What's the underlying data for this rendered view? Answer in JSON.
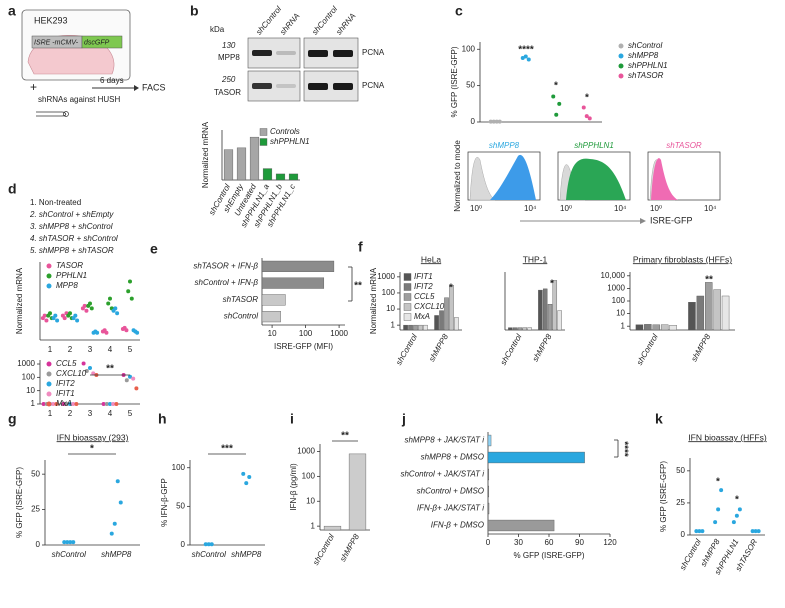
{
  "panel_a": {
    "panel": "a",
    "cell_line": "HEK293",
    "promoter": "ISRE -mCMV-",
    "reporter": "dscGFP",
    "duration": "6 days",
    "readout": "FACS",
    "plus": "+",
    "treatment": "shRNAs against HUSH"
  },
  "panel_b_blot": {
    "panel": "b",
    "unit": "kDa",
    "lanes": [
      "shControl",
      "shRNA"
    ],
    "rows": [
      {
        "size": "130",
        "protein": "MPP8",
        "loading": "PCNA"
      },
      {
        "size": "250",
        "protein": "TASOR",
        "loading": "PCNA"
      }
    ]
  },
  "panel_c_flow": {
    "samples": [
      "shMPP8",
      "shPPHLN1",
      "shTASOR"
    ],
    "ylabel": "Normalized to mode",
    "xlabel": "ISRE-GFP",
    "xticks": [
      "10⁰",
      "10⁴"
    ]
  },
  "panel_d_key": {
    "panel": "d",
    "conditions": [
      "1. Non-treated",
      "2. shControl + shEmpty",
      "3. shMPP8 + shControl",
      "4. shTASOR + shControl",
      "5. shMPP8 + shTASOR"
    ]
  },
  "chart_data": [
    {
      "type": "bar",
      "ylabel": "Normalized mRNA",
      "categories": [
        "shControl",
        "shEmpty",
        "Untreated",
        "shPPHLN1_a",
        "shPPHLN1_b",
        "shPPHLN1_c"
      ],
      "series": [
        {
          "name": "Controls",
          "color": "#a6a6a6",
          "values": [
            0.85,
            0.9,
            1.2,
            null,
            null,
            null
          ]
        },
        {
          "name": "shPPHLN1",
          "color": "#1e9a3a",
          "values": [
            null,
            null,
            null,
            0.32,
            0.17,
            0.17
          ]
        }
      ],
      "ylim": [
        0,
        1.4
      ]
    },
    {
      "type": "dot",
      "panel": "c",
      "ylabel": "% GFP (ISRE-GFP)",
      "categories": [
        null,
        null,
        null,
        null
      ],
      "series": [
        {
          "name": "shControl",
          "color": "#b0b0b0",
          "values": [
            [
              0.5,
              0.5,
              0.5,
              0.5
            ],
            null,
            null,
            null
          ]
        },
        {
          "name": "shMPP8",
          "color": "#2aa7df",
          "values": [
            null,
            [
              88,
              90,
              86
            ],
            null,
            null
          ]
        },
        {
          "name": "shPPHLN1",
          "color": "#1e9a3a",
          "values": [
            null,
            null,
            [
              35,
              10,
              25
            ],
            null
          ]
        },
        {
          "name": "shTASOR",
          "color": "#e8559a",
          "values": [
            null,
            null,
            null,
            [
              20,
              8,
              5
            ]
          ]
        }
      ],
      "ylim": [
        0,
        110
      ],
      "yticks": [
        0,
        50,
        100
      ],
      "annotations": [
        "****",
        "*",
        "*"
      ]
    },
    {
      "type": "dot",
      "ylabel": "Normalized mRNA",
      "categories": [
        "1",
        "2",
        "3",
        "4",
        "5"
      ],
      "series": [
        {
          "name": "TASOR",
          "color": "#e8559a",
          "values": [
            [
              0.9,
              1.0,
              0.8
            ],
            [
              1.0,
              0.9,
              1.1
            ],
            [
              1.3,
              1.4,
              1.2
            ],
            [
              0.35,
              0.4,
              0.3
            ],
            [
              0.45,
              0.5,
              0.4
            ]
          ]
        },
        {
          "name": "PPHLN1",
          "color": "#2ca02c",
          "values": [
            [
              1.0,
              1.1,
              0.9
            ],
            [
              1.0,
              1.1,
              0.9
            ],
            [
              1.4,
              1.5,
              1.3
            ],
            [
              1.5,
              1.7,
              1.3
            ],
            [
              2.0,
              2.4,
              1.7
            ]
          ]
        },
        {
          "name": "MPP8",
          "color": "#2aa7df",
          "values": [
            [
              0.9,
              1.0,
              0.8
            ],
            [
              0.9,
              1.0,
              0.8
            ],
            [
              0.3,
              0.35,
              0.3
            ],
            [
              1.2,
              1.3,
              1.1
            ],
            [
              0.4,
              0.35,
              0.3
            ]
          ]
        }
      ],
      "ylim": [
        0,
        3.2
      ]
    },
    {
      "type": "dot",
      "log": true,
      "categories": [
        "1",
        "2",
        "3",
        "4",
        "5"
      ],
      "series": [
        {
          "name": "CCL5",
          "color": "#d6339a",
          "values": [
            1,
            1,
            1100,
            1,
            150
          ]
        },
        {
          "name": "CXCL10",
          "color": "#9a9a9a",
          "values": [
            1,
            1,
            300,
            1,
            60
          ]
        },
        {
          "name": "IFIT2",
          "color": "#2aa7df",
          "values": [
            1,
            1,
            500,
            1,
            110
          ]
        },
        {
          "name": "IFIT1",
          "color": "#f08cc0",
          "values": [
            1,
            1,
            200,
            1,
            80
          ]
        },
        {
          "name": "MxA",
          "color": "#e8604c",
          "values": [
            1,
            1,
            150,
            1,
            15
          ]
        }
      ],
      "ylim": [
        1,
        2000
      ],
      "yticks": [
        1,
        10,
        100,
        1000
      ],
      "annotations": [
        "**"
      ]
    },
    {
      "type": "hbar",
      "panel": "e",
      "log": true,
      "xlabel": "ISRE-GFP (MFI)",
      "categories": [
        "shTASOR + IFN-β",
        "shControl + IFN-β",
        "shTASOR",
        "shControl"
      ],
      "values": [
        700,
        350,
        25,
        18
      ],
      "colors": [
        "#8c8c8c",
        "#8c8c8c",
        "#c8c8c8",
        "#c8c8c8"
      ],
      "xlim": [
        5,
        1500
      ],
      "xticks": [
        10,
        100,
        1000
      ],
      "annotations": [
        "**"
      ]
    },
    {
      "type": "bar",
      "panel": "f",
      "title": "HeLa",
      "ylabel": "Normalized mRNA",
      "log": true,
      "categories": [
        "shControl",
        "shMPP8"
      ],
      "series": [
        {
          "name": "IFIT1",
          "color": "#555555",
          "values": [
            1,
            4
          ]
        },
        {
          "name": "IFIT2",
          "color": "#7a7a7a",
          "values": [
            1,
            8
          ]
        },
        {
          "name": "CCL5",
          "color": "#9e9e9e",
          "values": [
            1,
            50
          ]
        },
        {
          "name": "CXCL10",
          "color": "#c4c4c4",
          "values": [
            1,
            300
          ]
        },
        {
          "name": "MxA",
          "color": "#e6e6e6",
          "values": [
            1,
            3
          ]
        }
      ],
      "ylim": [
        0.5,
        2000
      ],
      "yticks": [
        1,
        10,
        100,
        1000
      ],
      "annotations": [
        "*"
      ]
    },
    {
      "type": "bar",
      "title": "THP-1",
      "log": true,
      "categories": [
        "shControl",
        "shMPP8"
      ],
      "series": [
        {
          "color": "#555555",
          "values": [
            0.7,
            150
          ]
        },
        {
          "color": "#7a7a7a",
          "values": [
            0.7,
            180
          ]
        },
        {
          "color": "#9e9e9e",
          "values": [
            0.7,
            20
          ]
        },
        {
          "color": "#c4c4c4",
          "values": [
            0.7,
            600
          ]
        },
        {
          "color": "#e6e6e6",
          "values": [
            0.7,
            8
          ]
        }
      ],
      "ylim": [
        0.5,
        2000
      ],
      "annotations": [
        "*"
      ]
    },
    {
      "type": "bar",
      "title": "Primary fibroblasts (HFFs)",
      "log": true,
      "categories": [
        "shControl",
        "shMPP8"
      ],
      "series": [
        {
          "color": "#555555",
          "values": [
            1.3,
            80
          ]
        },
        {
          "color": "#7a7a7a",
          "values": [
            1.4,
            250
          ]
        },
        {
          "color": "#9e9e9e",
          "values": [
            1.3,
            3000
          ]
        },
        {
          "color": "#c4c4c4",
          "values": [
            1.3,
            800
          ]
        },
        {
          "color": "#e6e6e6",
          "values": [
            1.2,
            250
          ]
        }
      ],
      "ylim": [
        0.5,
        20000
      ],
      "yticks": [
        1,
        10,
        100,
        1000,
        {
          "value": 10000,
          "label": "10,000"
        }
      ],
      "annotations": [
        "**"
      ]
    },
    {
      "type": "dot",
      "panel": "g",
      "title": "IFN bioassay (293)",
      "ylabel": "% GFP (ISRE-GFP)",
      "categories": [
        "shControl",
        "shMPP8"
      ],
      "series": [
        {
          "color": "#2aa7df",
          "values": [
            [
              2,
              2,
              2,
              2
            ],
            [
              8,
              15,
              45,
              30
            ]
          ]
        }
      ],
      "ylim": [
        0,
        60
      ],
      "yticks": [
        0,
        25,
        50
      ],
      "annotations": [
        "*"
      ]
    },
    {
      "type": "dot",
      "panel": "h",
      "ylabel": "% IFN-β-GFP",
      "categories": [
        "shControl",
        "shMPP8"
      ],
      "series": [
        {
          "color": "#2aa7df",
          "values": [
            [
              1,
              1,
              1
            ],
            [
              92,
              80,
              88
            ]
          ]
        }
      ],
      "ylim": [
        0,
        110
      ],
      "yticks": [
        0,
        50,
        100
      ],
      "annotations": [
        "***"
      ]
    },
    {
      "type": "bar",
      "panel": "i",
      "ylabel": "IFN-β (pg/ml)",
      "log": true,
      "categories": [
        "shControl",
        "shMPP8"
      ],
      "series": [
        {
          "color": "#cccccc",
          "values": [
            1,
            800
          ]
        }
      ],
      "ylim": [
        0.7,
        2000
      ],
      "yticks": [
        1,
        10,
        100,
        1000
      ],
      "annotations": [
        "**"
      ]
    },
    {
      "type": "hbar",
      "panel": "j",
      "xlabel": "% GFP (ISRE-GFP)",
      "categories": [
        "shMPP8 + JAK/STAT i",
        "shMPP8 + DMSO",
        "shControl + JAK/STAT i",
        "shControl + DMSO",
        "IFN-β+ JAK/STAT i",
        "IFN-β + DMSO"
      ],
      "values": [
        3,
        95,
        0.8,
        0.8,
        1,
        65
      ],
      "colors": [
        "#8fd3f5",
        "#2aa7df",
        "#9a9a9a",
        "#9a9a9a",
        "#9a9a9a",
        "#9a9a9a"
      ],
      "xlim": [
        0,
        120
      ],
      "xticks": [
        0,
        30,
        60,
        90,
        120
      ],
      "annotations": [
        "****"
      ]
    },
    {
      "type": "dot",
      "panel": "k",
      "title": "IFN bioassay (HFFs)",
      "ylabel": "% GFP (ISRE-GFP)",
      "categories": [
        "shControl",
        "shMPP8",
        "shPPHLN1",
        "shTASOR"
      ],
      "series": [
        {
          "color": "#2aa7df",
          "values": [
            [
              3,
              3,
              3
            ],
            [
              10,
              20,
              35
            ],
            [
              10,
              15,
              20
            ],
            [
              3,
              3,
              3
            ]
          ]
        }
      ],
      "ylim": [
        0,
        60
      ],
      "yticks": [
        0,
        25,
        50
      ],
      "annotations": [
        "*",
        "*"
      ]
    }
  ]
}
